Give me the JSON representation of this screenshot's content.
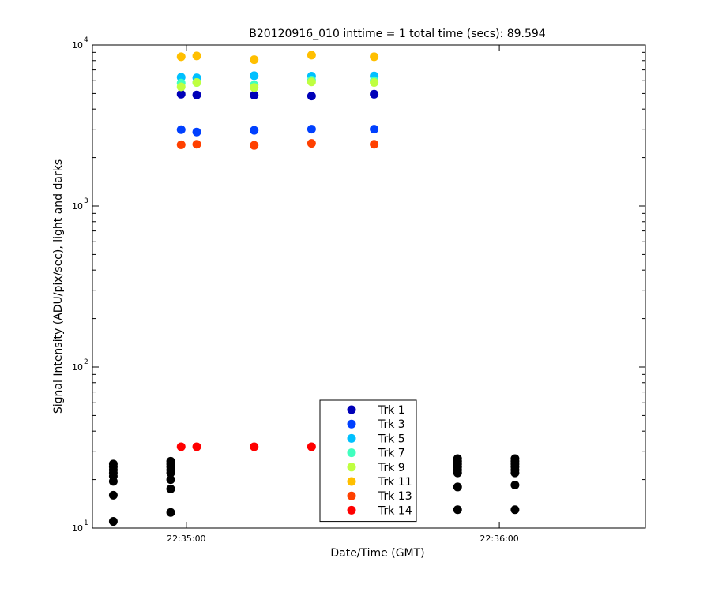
{
  "chart_data": {
    "type": "scatter",
    "title": "B20120916_010 inttime = 1 total time (secs): 89.594",
    "xlabel": "Date/Time (GMT)",
    "ylabel": "Signal Intensity (ADU/pix/sec), light and darks",
    "yscale": "log",
    "ylim": [
      10,
      10000
    ],
    "xlim": [
      "22:34:42",
      "22:36:28"
    ],
    "grid": false,
    "legend_position": "bottom-center",
    "x_ticks": [
      {
        "x": "22:35:00",
        "label": "22:35:00"
      },
      {
        "x": "22:36:00",
        "label": "22:36:00"
      }
    ],
    "y_ticks": [
      {
        "value": 10,
        "base": "10",
        "exp": "1"
      },
      {
        "value": 100,
        "base": "10",
        "exp": "2"
      },
      {
        "value": 1000,
        "base": "10",
        "exp": "3"
      },
      {
        "value": 10000,
        "base": "10",
        "exp": "4"
      }
    ],
    "light_times": [
      "22:34:59",
      "22:35:02",
      "22:35:13",
      "22:35:24",
      "22:35:36"
    ],
    "series": [
      {
        "name": "Trk 1",
        "color": "#0000b8",
        "x": [
          "22:34:59",
          "22:35:02",
          "22:35:13",
          "22:35:24",
          "22:35:36"
        ],
        "values": [
          4950,
          4900,
          4880,
          4820,
          4950
        ]
      },
      {
        "name": "Trk 3",
        "color": "#0040ff",
        "x": [
          "22:34:59",
          "22:35:02",
          "22:35:13",
          "22:35:24",
          "22:35:36"
        ],
        "values": [
          2980,
          2880,
          2950,
          3000,
          3000
        ]
      },
      {
        "name": "Trk 5",
        "color": "#00c0ff",
        "x": [
          "22:34:59",
          "22:35:02",
          "22:35:13",
          "22:35:24",
          "22:35:36"
        ],
        "values": [
          6300,
          6250,
          6450,
          6400,
          6420
        ]
      },
      {
        "name": "Trk 7",
        "color": "#40ffbf",
        "x": [
          "22:34:59",
          "22:35:02",
          "22:35:13",
          "22:35:24",
          "22:35:36"
        ],
        "values": [
          5800,
          5850,
          5650,
          6050,
          6000
        ]
      },
      {
        "name": "Trk 9",
        "color": "#bfff40",
        "x": [
          "22:34:59",
          "22:35:02",
          "22:35:13",
          "22:35:24",
          "22:35:36"
        ],
        "values": [
          5500,
          5850,
          5450,
          5900,
          5850
        ]
      },
      {
        "name": "Trk 11",
        "color": "#ffbf00",
        "x": [
          "22:34:59",
          "22:35:02",
          "22:35:13",
          "22:35:24",
          "22:35:36"
        ],
        "values": [
          8450,
          8550,
          8100,
          8650,
          8450
        ]
      },
      {
        "name": "Trk 13",
        "color": "#ff4000",
        "x": [
          "22:34:59",
          "22:35:02",
          "22:35:13",
          "22:35:24",
          "22:35:36"
        ],
        "values": [
          2400,
          2420,
          2380,
          2450,
          2420
        ]
      },
      {
        "name": "Trk 14",
        "color": "#ff0000",
        "x": [
          "22:34:59",
          "22:35:02",
          "22:35:13",
          "22:35:24",
          "22:35:36"
        ],
        "values": [
          32,
          32,
          32,
          32,
          32
        ]
      }
    ],
    "darks": {
      "color": "#000000",
      "groups": [
        {
          "x": "22:34:46",
          "values": [
            25,
            24,
            23,
            22,
            21,
            19.5,
            16,
            11
          ]
        },
        {
          "x": "22:34:57",
          "values": [
            26,
            25,
            24,
            23,
            22,
            20,
            17.5,
            12.5
          ]
        },
        {
          "x": "22:35:52",
          "values": [
            27,
            26,
            25,
            24,
            23,
            22,
            18,
            13
          ]
        },
        {
          "x": "22:36:03",
          "values": [
            27,
            26,
            25,
            24,
            23,
            22,
            18.5,
            13
          ]
        }
      ]
    }
  }
}
